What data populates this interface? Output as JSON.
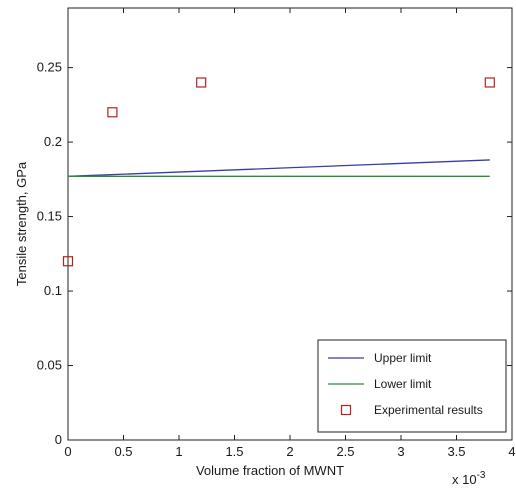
{
  "chart_data": {
    "type": "line",
    "title": "",
    "xlabel": "Volume fraction of MWNT",
    "ylabel": "Tensile strength, GPa",
    "x_multiplier_label": "x 10",
    "x_multiplier_exponent": "-3",
    "xlim": [
      0,
      4
    ],
    "ylim": [
      0,
      0.29
    ],
    "x_ticks": [
      "0",
      "0.5",
      "1",
      "1.5",
      "2",
      "2.5",
      "3",
      "3.5",
      "4"
    ],
    "y_ticks": [
      "0",
      "0.05",
      "0.1",
      "0.15",
      "0.2",
      "0.25"
    ],
    "grid": false,
    "legend_position": "bottom-right",
    "series": [
      {
        "name": "Upper limit",
        "kind": "line",
        "color": "#3a3aa8",
        "x": [
          0,
          3.8
        ],
        "y": [
          0.177,
          0.188
        ]
      },
      {
        "name": "Lower limit",
        "kind": "line",
        "color": "#2e8b3a",
        "x": [
          0,
          3.8
        ],
        "y": [
          0.177,
          0.177
        ]
      },
      {
        "name": "Experimental results",
        "kind": "scatter",
        "marker": "square",
        "color": "#b22222",
        "x": [
          0,
          0.4,
          1.2,
          3.8
        ],
        "y": [
          0.12,
          0.22,
          0.24,
          0.24
        ]
      }
    ]
  }
}
